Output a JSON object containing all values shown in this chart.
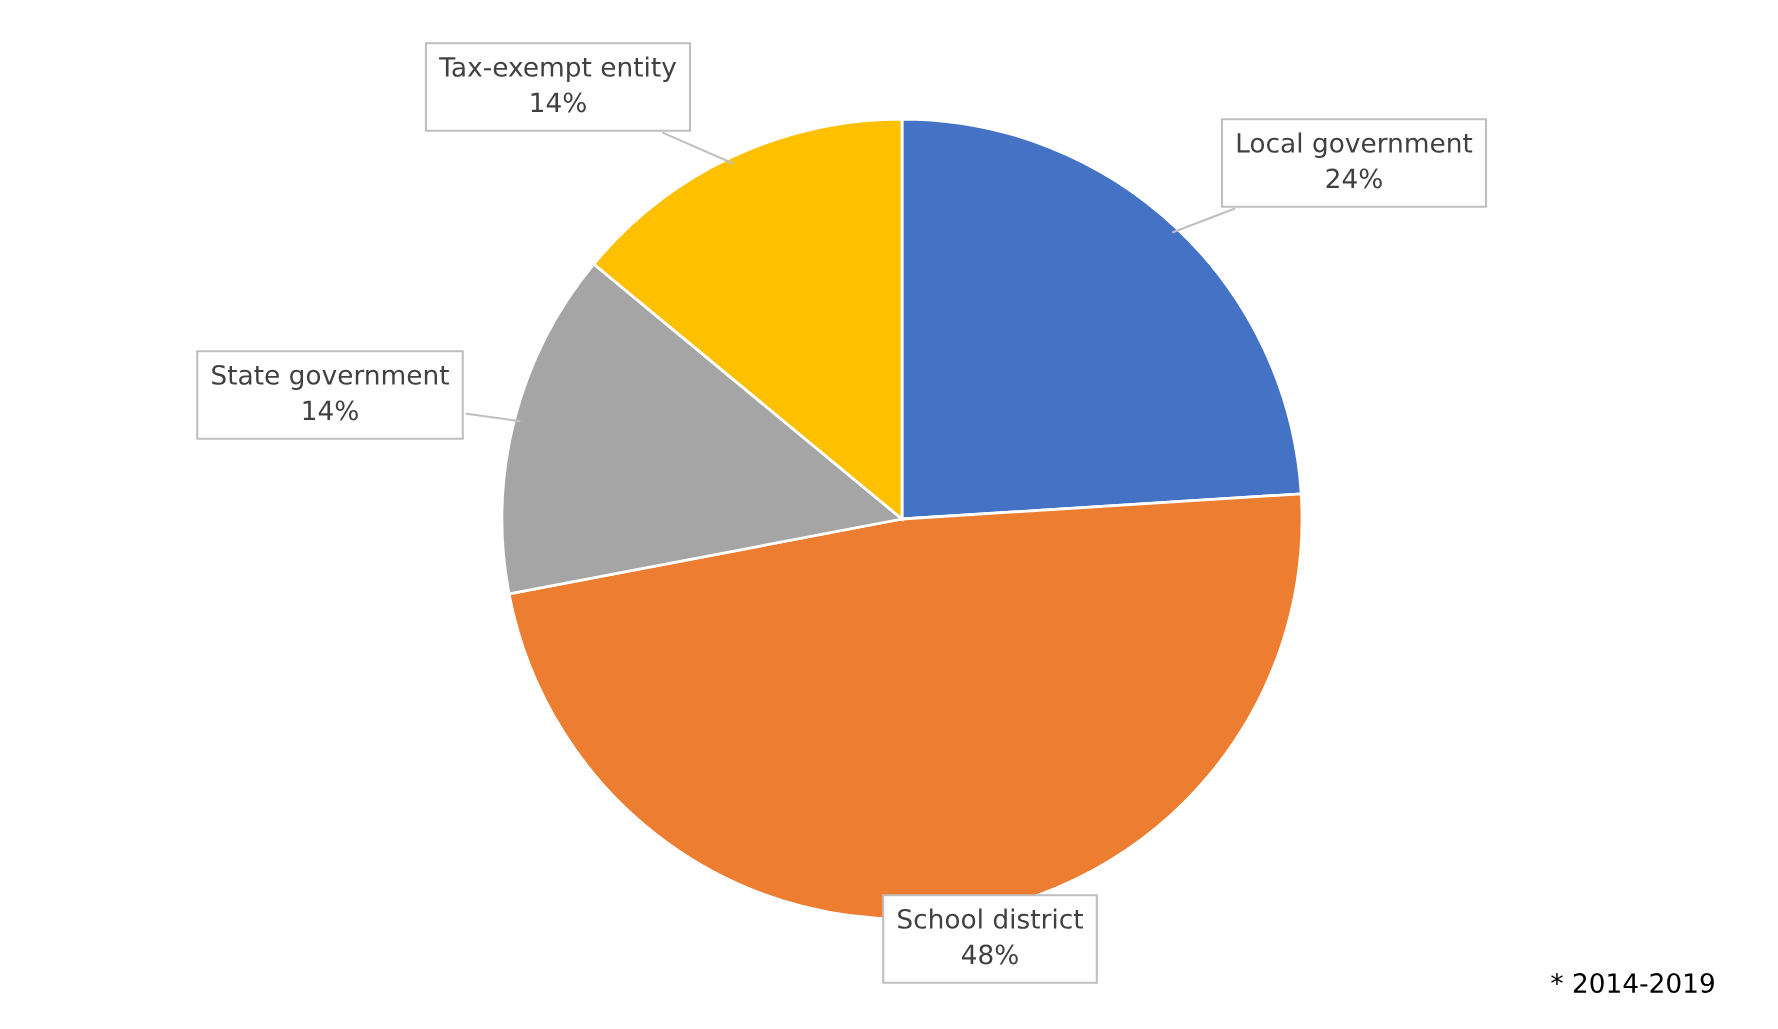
{
  "chart_data": {
    "type": "pie",
    "categories": [
      "Local government",
      "School district",
      "State government",
      "Tax-exempt entity"
    ],
    "values": [
      24,
      48,
      14,
      14
    ],
    "value_labels": [
      "24%",
      "48%",
      "14%",
      "14%"
    ],
    "colors": [
      "#4472c4",
      "#ed7d31",
      "#a5a5a5",
      "#ffc000"
    ],
    "annotations": [
      "* 2014-2019"
    ]
  }
}
